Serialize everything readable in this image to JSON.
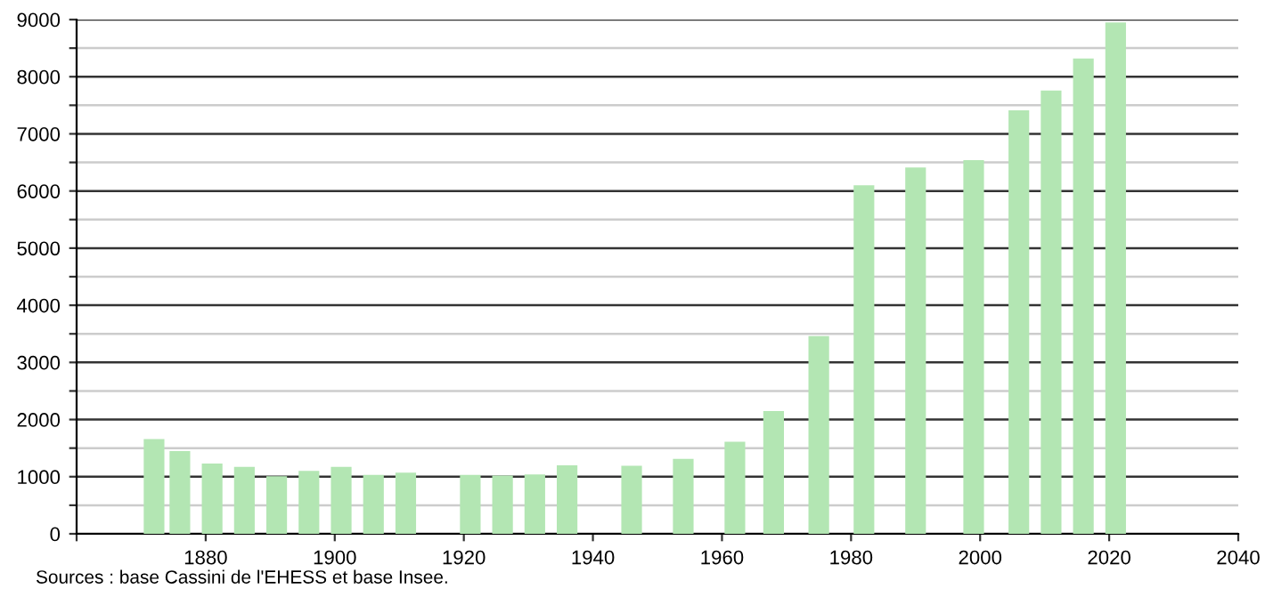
{
  "chart_data": {
    "type": "bar",
    "x": [
      1872,
      1876,
      1881,
      1886,
      1891,
      1896,
      1901,
      1906,
      1911,
      1921,
      1926,
      1931,
      1936,
      1946,
      1954,
      1962,
      1968,
      1975,
      1982,
      1990,
      1999,
      2006,
      2011,
      2016,
      2021
    ],
    "values": [
      1660,
      1450,
      1230,
      1170,
      1010,
      1100,
      1170,
      1030,
      1070,
      1030,
      1020,
      1040,
      1200,
      1190,
      1310,
      1610,
      2150,
      3460,
      6100,
      6410,
      6540,
      7410,
      7760,
      8320,
      8950
    ],
    "color": "#b3e6b3",
    "xlim": [
      1860,
      2040
    ],
    "xticks": [
      {
        "value": 1860,
        "label": null
      },
      1880,
      1900,
      1920,
      1940,
      1960,
      1980,
      2000,
      2020,
      2040
    ],
    "ylim": [
      0,
      9000
    ],
    "yticks": [
      0,
      {
        "value": 500,
        "label": null
      },
      1000,
      {
        "value": 1500,
        "label": null
      },
      2000,
      {
        "value": 2500,
        "label": null
      },
      3000,
      {
        "value": 3500,
        "label": null
      },
      4000,
      {
        "value": 4500,
        "label": null
      },
      5000,
      {
        "value": 5500,
        "label": null
      },
      6000,
      {
        "value": 6500,
        "label": null
      },
      7000,
      {
        "value": 7500,
        "label": null
      },
      8000,
      {
        "value": 8500,
        "label": null
      },
      9000
    ],
    "grid": "y",
    "annotations": [
      "Sources : base Cassini de l'EHESS et base Insee."
    ]
  }
}
